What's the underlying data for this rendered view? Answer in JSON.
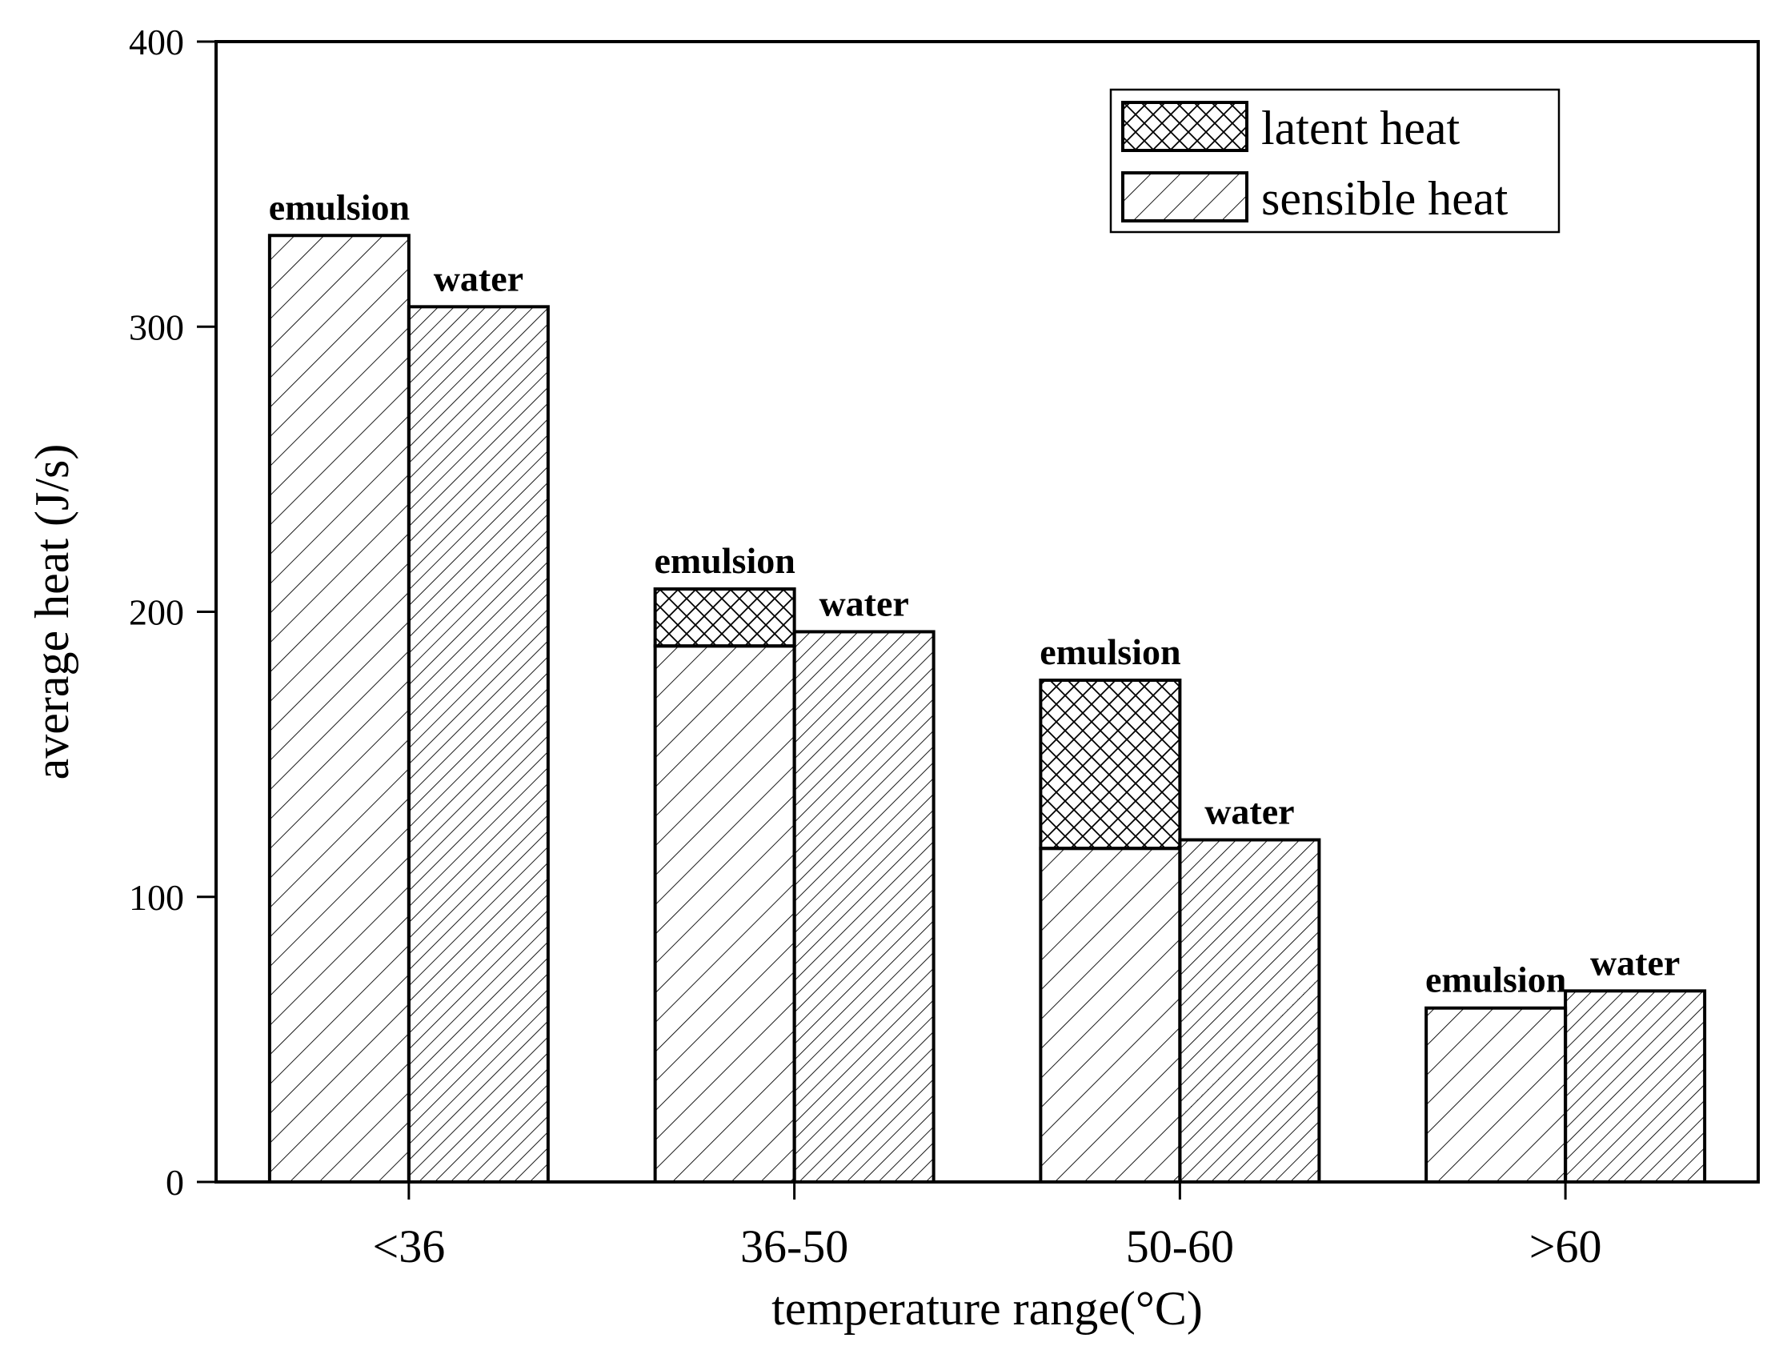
{
  "chart_data": {
    "type": "bar",
    "stacked": true,
    "title": "",
    "xlabel": "temperature range(°C)",
    "ylabel": "average heat (J/s)",
    "ylim": [
      0,
      400
    ],
    "yticks": [
      0,
      100,
      200,
      300,
      400
    ],
    "yticks_labels": [
      "0",
      "100",
      "200",
      "300",
      "400"
    ],
    "categories": [
      "<36",
      "36-50",
      "50-60",
      ">60"
    ],
    "groups": [
      "emulsion",
      "water"
    ],
    "series": [
      {
        "name": "emulsion",
        "sensible": [
          332,
          188,
          117,
          61
        ],
        "latent": [
          0,
          20,
          59,
          0
        ]
      },
      {
        "name": "water",
        "sensible": [
          307,
          193,
          120,
          67
        ],
        "latent": [
          0,
          0,
          0,
          0
        ]
      }
    ],
    "legend": {
      "position": "top-right",
      "entries": [
        {
          "label": "latent heat",
          "pattern": "crosshatch"
        },
        {
          "label": "sensible heat",
          "pattern": "diagonal"
        }
      ]
    },
    "grid": false,
    "colors": {
      "stroke": "#000000",
      "background": "#ffffff"
    }
  }
}
